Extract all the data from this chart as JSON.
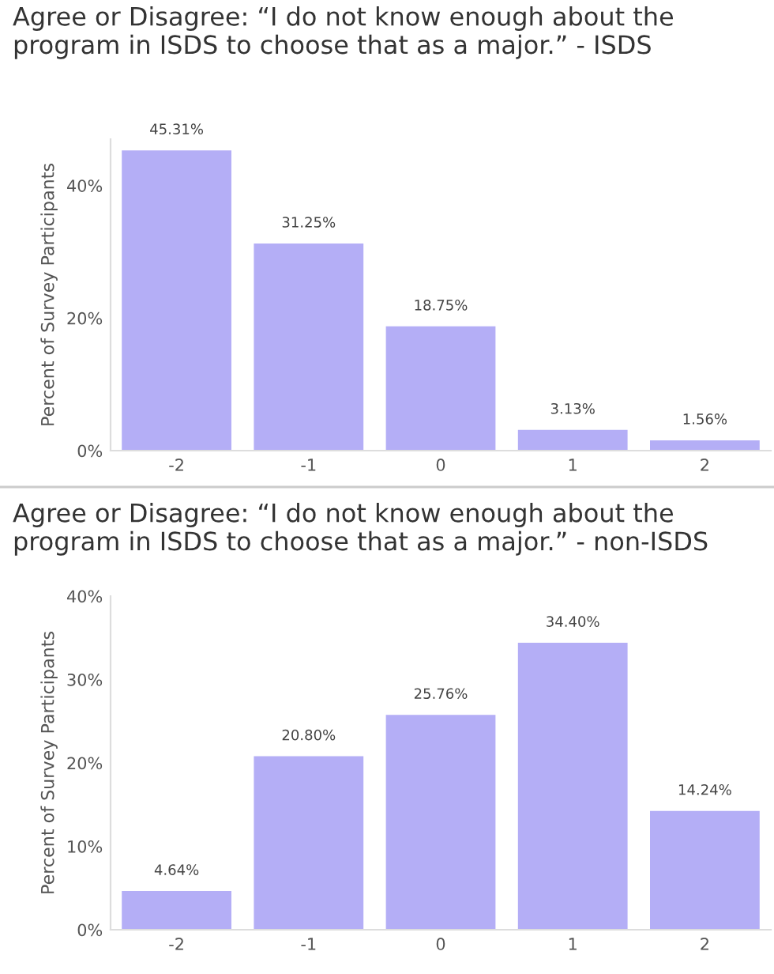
{
  "chart_data": [
    {
      "type": "bar",
      "title": "Agree or Disagree: “I do not know enough about the program in ISDS to choose that as a major.” - ISDS",
      "ylabel": "Percent of Survey Participants",
      "categories": [
        "-2",
        "-1",
        "0",
        "1",
        "2"
      ],
      "values": [
        45.31,
        31.25,
        18.75,
        3.13,
        1.56
      ],
      "color": "#b4aef6",
      "value_labels": [
        "45.31%",
        "31.25%",
        "18.75%",
        "3.13%",
        "1.56%"
      ],
      "ylim": [
        0,
        47
      ],
      "yticks": [
        {
          "value": 0,
          "label": "0%"
        },
        {
          "value": 20,
          "label": "20%"
        },
        {
          "value": 40,
          "label": "40%"
        }
      ]
    },
    {
      "type": "bar",
      "title": "Agree or Disagree: “I do not know enough about the program in ISDS to choose that as a major.” - non-ISDS",
      "ylabel": "Percent of Survey Participants",
      "categories": [
        "-2",
        "-1",
        "0",
        "1",
        "2"
      ],
      "values": [
        4.64,
        20.8,
        25.76,
        34.4,
        14.24
      ],
      "color": "#b4aef6",
      "value_labels": [
        "4.64%",
        "20.80%",
        "25.76%",
        "34.40%",
        "14.24%"
      ],
      "ylim": [
        0,
        40
      ],
      "yticks": [
        {
          "value": 0,
          "label": "0%"
        },
        {
          "value": 10,
          "label": "10%"
        },
        {
          "value": 20,
          "label": "20%"
        },
        {
          "value": 30,
          "label": "30%"
        },
        {
          "value": 40,
          "label": "40%"
        }
      ]
    }
  ]
}
